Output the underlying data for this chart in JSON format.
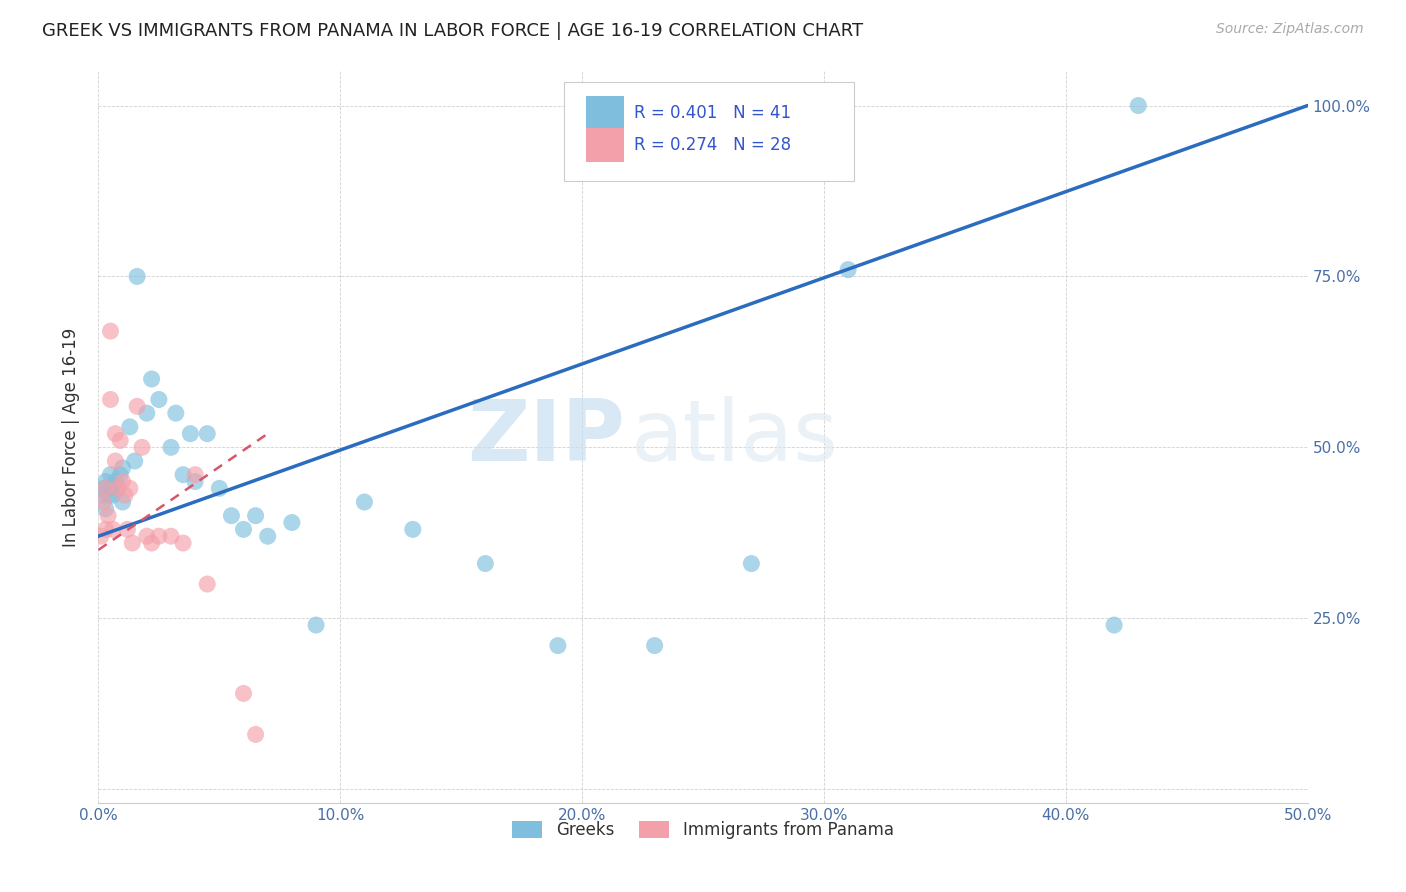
{
  "title": "GREEK VS IMMIGRANTS FROM PANAMA IN LABOR FORCE | AGE 16-19 CORRELATION CHART",
  "source": "Source: ZipAtlas.com",
  "ylabel": "In Labor Force | Age 16-19",
  "xlim": [
    0.0,
    0.5
  ],
  "ylim": [
    -0.02,
    1.05
  ],
  "xticks": [
    0.0,
    0.1,
    0.2,
    0.3,
    0.4,
    0.5
  ],
  "xticklabels": [
    "0.0%",
    "10.0%",
    "20.0%",
    "30.0%",
    "40.0%",
    "50.0%"
  ],
  "yticks": [
    0.0,
    0.25,
    0.5,
    0.75,
    1.0
  ],
  "yticklabels": [
    "",
    "25.0%",
    "50.0%",
    "75.0%",
    "100.0%"
  ],
  "legend_blue_r": "R = 0.401",
  "legend_blue_n": "N = 41",
  "legend_pink_r": "R = 0.274",
  "legend_pink_n": "N = 28",
  "legend_group1": "Greeks",
  "legend_group2": "Immigrants from Panama",
  "blue_color": "#7fbfdd",
  "pink_color": "#f4a0aa",
  "blue_line_color": "#2b6cbf",
  "pink_line_color": "#d9556a",
  "blue_line_x0": 0.0,
  "blue_line_y0": 0.37,
  "blue_line_x1": 0.5,
  "blue_line_y1": 1.0,
  "pink_line_x0": 0.0,
  "pink_line_y0": 0.35,
  "pink_line_x1": 0.07,
  "pink_line_y1": 0.52,
  "blue_x": [
    0.001,
    0.002,
    0.003,
    0.003,
    0.004,
    0.005,
    0.005,
    0.006,
    0.007,
    0.008,
    0.009,
    0.01,
    0.01,
    0.013,
    0.015,
    0.016,
    0.02,
    0.022,
    0.025,
    0.03,
    0.032,
    0.035,
    0.038,
    0.04,
    0.045,
    0.05,
    0.055,
    0.06,
    0.065,
    0.07,
    0.08,
    0.09,
    0.11,
    0.13,
    0.16,
    0.19,
    0.23,
    0.27,
    0.31,
    0.42,
    0.43
  ],
  "blue_y": [
    0.43,
    0.44,
    0.41,
    0.45,
    0.43,
    0.44,
    0.46,
    0.43,
    0.45,
    0.44,
    0.46,
    0.42,
    0.47,
    0.53,
    0.48,
    0.75,
    0.55,
    0.6,
    0.57,
    0.5,
    0.55,
    0.46,
    0.52,
    0.45,
    0.52,
    0.44,
    0.4,
    0.38,
    0.4,
    0.37,
    0.39,
    0.24,
    0.42,
    0.38,
    0.33,
    0.21,
    0.21,
    0.33,
    0.76,
    0.24,
    1.0
  ],
  "pink_x": [
    0.001,
    0.002,
    0.003,
    0.003,
    0.004,
    0.005,
    0.005,
    0.006,
    0.007,
    0.007,
    0.008,
    0.009,
    0.01,
    0.011,
    0.012,
    0.013,
    0.014,
    0.016,
    0.018,
    0.02,
    0.022,
    0.025,
    0.03,
    0.035,
    0.04,
    0.045,
    0.06,
    0.065
  ],
  "pink_y": [
    0.37,
    0.42,
    0.38,
    0.44,
    0.4,
    0.67,
    0.57,
    0.38,
    0.52,
    0.48,
    0.44,
    0.51,
    0.45,
    0.43,
    0.38,
    0.44,
    0.36,
    0.56,
    0.5,
    0.37,
    0.36,
    0.37,
    0.37,
    0.36,
    0.46,
    0.3,
    0.14,
    0.08
  ],
  "watermark_zip": "ZIP",
  "watermark_atlas": "atlas",
  "figsize": [
    14.06,
    8.92
  ],
  "dpi": 100
}
